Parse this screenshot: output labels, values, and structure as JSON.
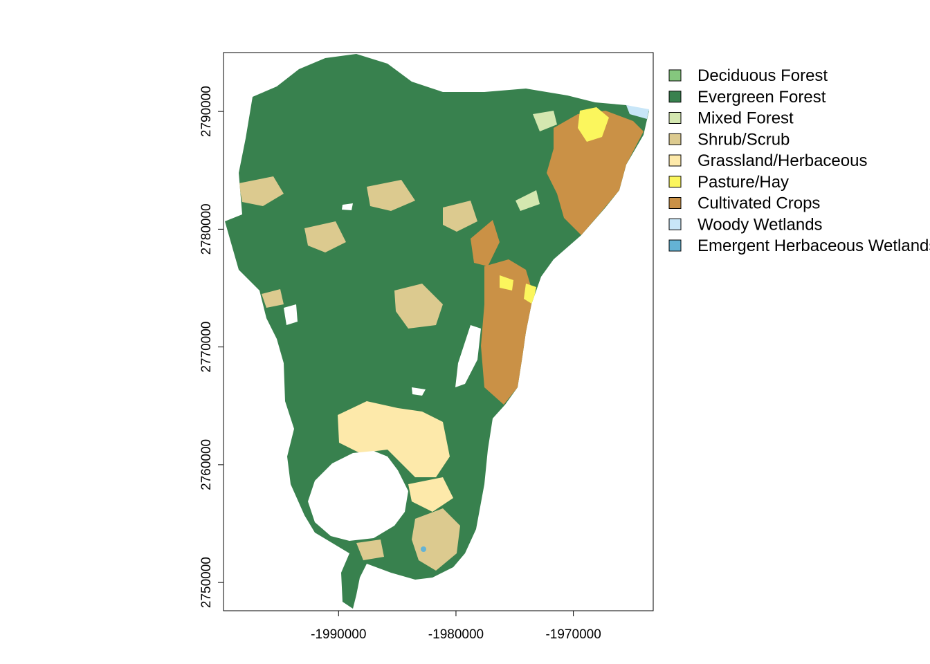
{
  "map": {
    "x_axis": {
      "ticks": [
        {
          "value": -1990000,
          "label": "-1990000"
        },
        {
          "value": -1980000,
          "label": "-1980000"
        },
        {
          "value": -1970000,
          "label": "-1970000"
        }
      ],
      "range": [
        -1999800,
        -1963200
      ]
    },
    "y_axis": {
      "ticks": [
        {
          "value": 2750000,
          "label": "2750000"
        },
        {
          "value": 2760000,
          "label": "2760000"
        },
        {
          "value": 2770000,
          "label": "2770000"
        },
        {
          "value": 2780000,
          "label": "2780000"
        },
        {
          "value": 2790000,
          "label": "2790000"
        }
      ],
      "range": [
        2747600,
        2795000
      ]
    },
    "background_color": "#ffffff"
  },
  "legend": {
    "items": [
      {
        "label": "Deciduous Forest",
        "color": "#85c77e"
      },
      {
        "label": "Evergreen Forest",
        "color": "#38814e"
      },
      {
        "label": "Mixed Forest",
        "color": "#d4e7b0"
      },
      {
        "label": "Shrub/Scrub",
        "color": "#dcca8f"
      },
      {
        "label": "Grassland/Herbaceous",
        "color": "#fde9aa"
      },
      {
        "label": "Pasture/Hay",
        "color": "#fbf65d"
      },
      {
        "label": "Cultivated Crops",
        "color": "#ca9146"
      },
      {
        "label": "Woody Wetlands",
        "color": "#c8e6f8"
      },
      {
        "label": "Emergent Herbaceous Wetlands",
        "color": "#64b3d5"
      }
    ]
  }
}
